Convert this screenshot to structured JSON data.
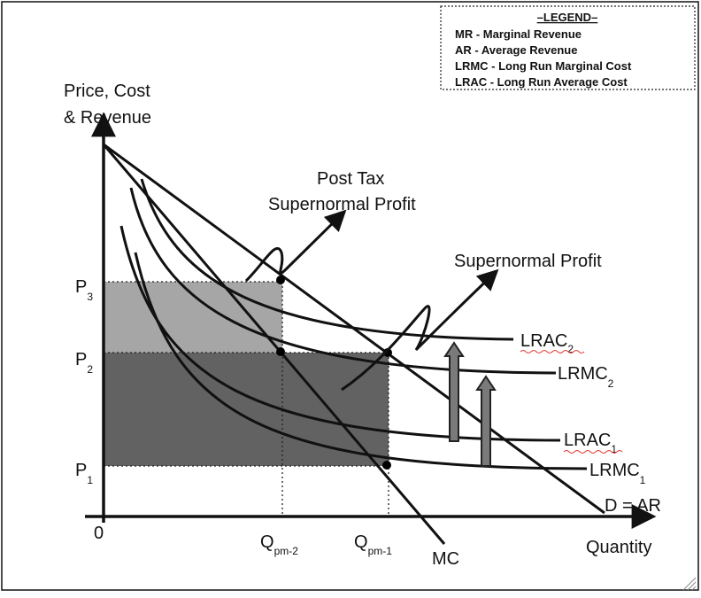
{
  "legend": {
    "title": "–LEGEND–",
    "items": [
      "MR - Marginal Revenue",
      "AR - Average Revenue",
      "LRMC - Long Run Marginal Cost",
      "LRAC - Long Run Average Cost"
    ]
  },
  "axes": {
    "y_label_line1": "Price, Cost",
    "y_label_line2": "& Revenue",
    "x_label": "Quantity",
    "origin": "0"
  },
  "price_levels": [
    {
      "main": "P",
      "sub": "3"
    },
    {
      "main": "P",
      "sub": "2"
    },
    {
      "main": "P",
      "sub": "1"
    }
  ],
  "quantity_levels": [
    {
      "main": "Q",
      "sub": "pm-2"
    },
    {
      "main": "Q",
      "sub": "pm-1"
    }
  ],
  "curves": {
    "lrac2": {
      "main": "LRAC",
      "sub": "2"
    },
    "lrmc2": {
      "main": "LRMC",
      "sub": "2"
    },
    "lrac1": {
      "main": "LRAC",
      "sub": "1"
    },
    "lrmc1": {
      "main": "LRMC",
      "sub": "1"
    },
    "demand": "D = AR",
    "mc": "MC"
  },
  "annotations": {
    "post_tax_line1": "Post Tax",
    "post_tax_line2": "Supernormal Profit",
    "supernormal": "Supernormal Profit"
  },
  "colors": {
    "post_tax_area": "#a6a6a6",
    "supernormal_area": "#626262",
    "lines": "#111111"
  }
}
